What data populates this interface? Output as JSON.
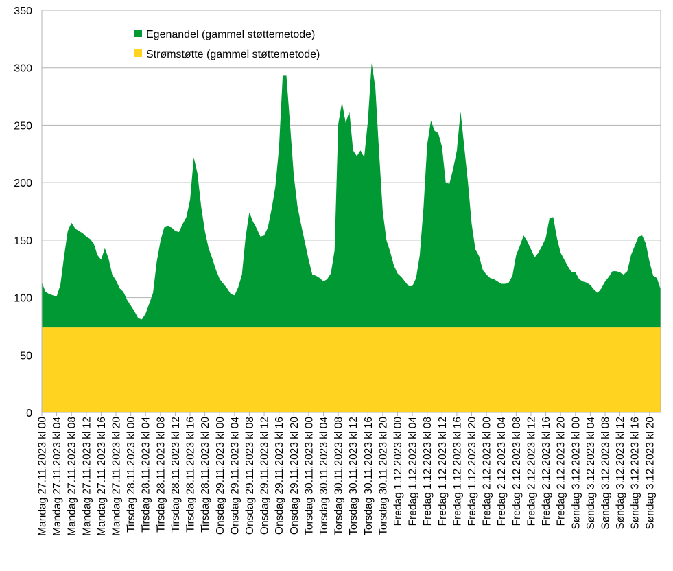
{
  "chart_data": {
    "type": "area",
    "stacked": true,
    "ylim": [
      0,
      350
    ],
    "yticks": [
      0,
      50,
      100,
      150,
      200,
      250,
      300,
      350
    ],
    "grid": true,
    "legend_position": "top-left",
    "series": [
      {
        "name": "Egenandel (gammel støttemetode)",
        "color": "#009933",
        "values": [
          39,
          31,
          29,
          28,
          27,
          37,
          62,
          84,
          91,
          86,
          84,
          82,
          79,
          77,
          73,
          63,
          59,
          69,
          60,
          46,
          41,
          34,
          31,
          24,
          19,
          14,
          8,
          7,
          12,
          21,
          30,
          57,
          75,
          87,
          88,
          87,
          84,
          83,
          90,
          96,
          111,
          148,
          134,
          105,
          84,
          69,
          60,
          50,
          42,
          38,
          34,
          29,
          28,
          35,
          46,
          79,
          100,
          92,
          86,
          79,
          80,
          87,
          103,
          122,
          156,
          219,
          219,
          176,
          132,
          105,
          89,
          74,
          59,
          46,
          45,
          43,
          40,
          42,
          47,
          67,
          177,
          196,
          178,
          188,
          154,
          149,
          154,
          148,
          180,
          230,
          209,
          153,
          101,
          76,
          66,
          54,
          47,
          44,
          40,
          36,
          36,
          43,
          63,
          104,
          159,
          180,
          171,
          169,
          157,
          126,
          125,
          138,
          154,
          188,
          157,
          126,
          90,
          68,
          62,
          50,
          46,
          43,
          42,
          40,
          38,
          38,
          39,
          45,
          63,
          71,
          80,
          75,
          68,
          61,
          65,
          71,
          78,
          95,
          96,
          78,
          65,
          59,
          53,
          48,
          48,
          42,
          40,
          39,
          37,
          33,
          30,
          34,
          40,
          44,
          49,
          49,
          48,
          46,
          49,
          63,
          71,
          79,
          80,
          73,
          57,
          45,
          43,
          33
        ],
        "bind_label": "legend.green"
      },
      {
        "name": "Strømstøtte (gammel støttemetode)",
        "color": "#ffd320",
        "values": [
          74,
          74,
          74,
          74,
          74,
          74,
          74,
          74,
          74,
          74,
          74,
          74,
          74,
          74,
          74,
          74,
          74,
          74,
          74,
          74,
          74,
          74,
          74,
          74,
          74,
          74,
          74,
          74,
          74,
          74,
          74,
          74,
          74,
          74,
          74,
          74,
          74,
          74,
          74,
          74,
          74,
          74,
          74,
          74,
          74,
          74,
          74,
          74,
          74,
          74,
          74,
          74,
          74,
          74,
          74,
          74,
          74,
          74,
          74,
          74,
          74,
          74,
          74,
          74,
          74,
          74,
          74,
          74,
          74,
          74,
          74,
          74,
          74,
          74,
          74,
          74,
          74,
          74,
          74,
          74,
          74,
          74,
          74,
          74,
          74,
          74,
          74,
          74,
          74,
          74,
          74,
          74,
          74,
          74,
          74,
          74,
          74,
          74,
          74,
          74,
          74,
          74,
          74,
          74,
          74,
          74,
          74,
          74,
          74,
          74,
          74,
          74,
          74,
          74,
          74,
          74,
          74,
          74,
          74,
          74,
          74,
          74,
          74,
          74,
          74,
          74,
          74,
          74,
          74,
          74,
          74,
          74,
          74,
          74,
          74,
          74,
          74,
          74,
          74,
          74,
          74,
          74,
          74,
          74,
          74,
          74,
          74,
          74,
          74,
          74,
          74,
          74,
          74,
          74,
          74,
          74,
          74,
          74,
          74,
          74,
          74,
          74,
          74,
          74,
          74,
          74,
          74,
          74
        ],
        "bind_label": "legend.yellow"
      }
    ],
    "x_labels": [
      "Mandag 27.11.2023 kl 00",
      "Mandag 27.11.2023 kl 04",
      "Mandag 27.11.2023 kl 08",
      "Mandag 27.11.2023 kl 12",
      "Mandag 27.11.2023 kl 16",
      "Mandag 27.11.2023 kl 20",
      "Tirsdag 28.11.2023 kl 00",
      "Tirsdag 28.11.2023 kl 04",
      "Tirsdag 28.11.2023 kl 08",
      "Tirsdag 28.11.2023 kl 12",
      "Tirsdag 28.11.2023 kl 16",
      "Tirsdag 28.11.2023 kl 20",
      "Onsdag 29.11.2023 kl 00",
      "Onsdag 29.11.2023 kl 04",
      "Onsdag 29.11.2023 kl 08",
      "Onsdag 29.11.2023 kl 12",
      "Onsdag 29.11.2023 kl 16",
      "Onsdag 29.11.2023 kl 20",
      "Torsdag 30.11.2023 kl 00",
      "Torsdag 30.11.2023 kl 04",
      "Torsdag 30.11.2023 kl 08",
      "Torsdag 30.11.2023 kl 12",
      "Torsdag 30.11.2023 kl 16",
      "Torsdag 30.11.2023 kl 20",
      "Fredag 1.12.2023 kl 00",
      "Fredag 1.12.2023 kl 04",
      "Fredag 1.12.2023 kl 08",
      "Fredag 1.12.2023 kl 12",
      "Fredag 1.12.2023 kl 16",
      "Fredag 1.12.2023 kl 20",
      "Fredag 2.12.2023 kl 00",
      "Fredag 2.12.2023 kl 04",
      "Fredag 2.12.2023 kl 08",
      "Fredag 2.12.2023 kl 12",
      "Fredag 2.12.2023 kl 16",
      "Fredag 2.12.2023 kl 20",
      "Søndag 3.12.2023 kl 00",
      "Søndag 3.12.2023 kl 04",
      "Søndag 3.12.2023 kl 08",
      "Søndag 3.12.2023 kl 12",
      "Søndag 3.12.2023 kl 16",
      "Søndag 3.12.2023 kl 20"
    ]
  },
  "legend": {
    "green": "Egenandel (gammel støttemetode)",
    "yellow": "Strømstøtte (gammel støttemetode)"
  }
}
